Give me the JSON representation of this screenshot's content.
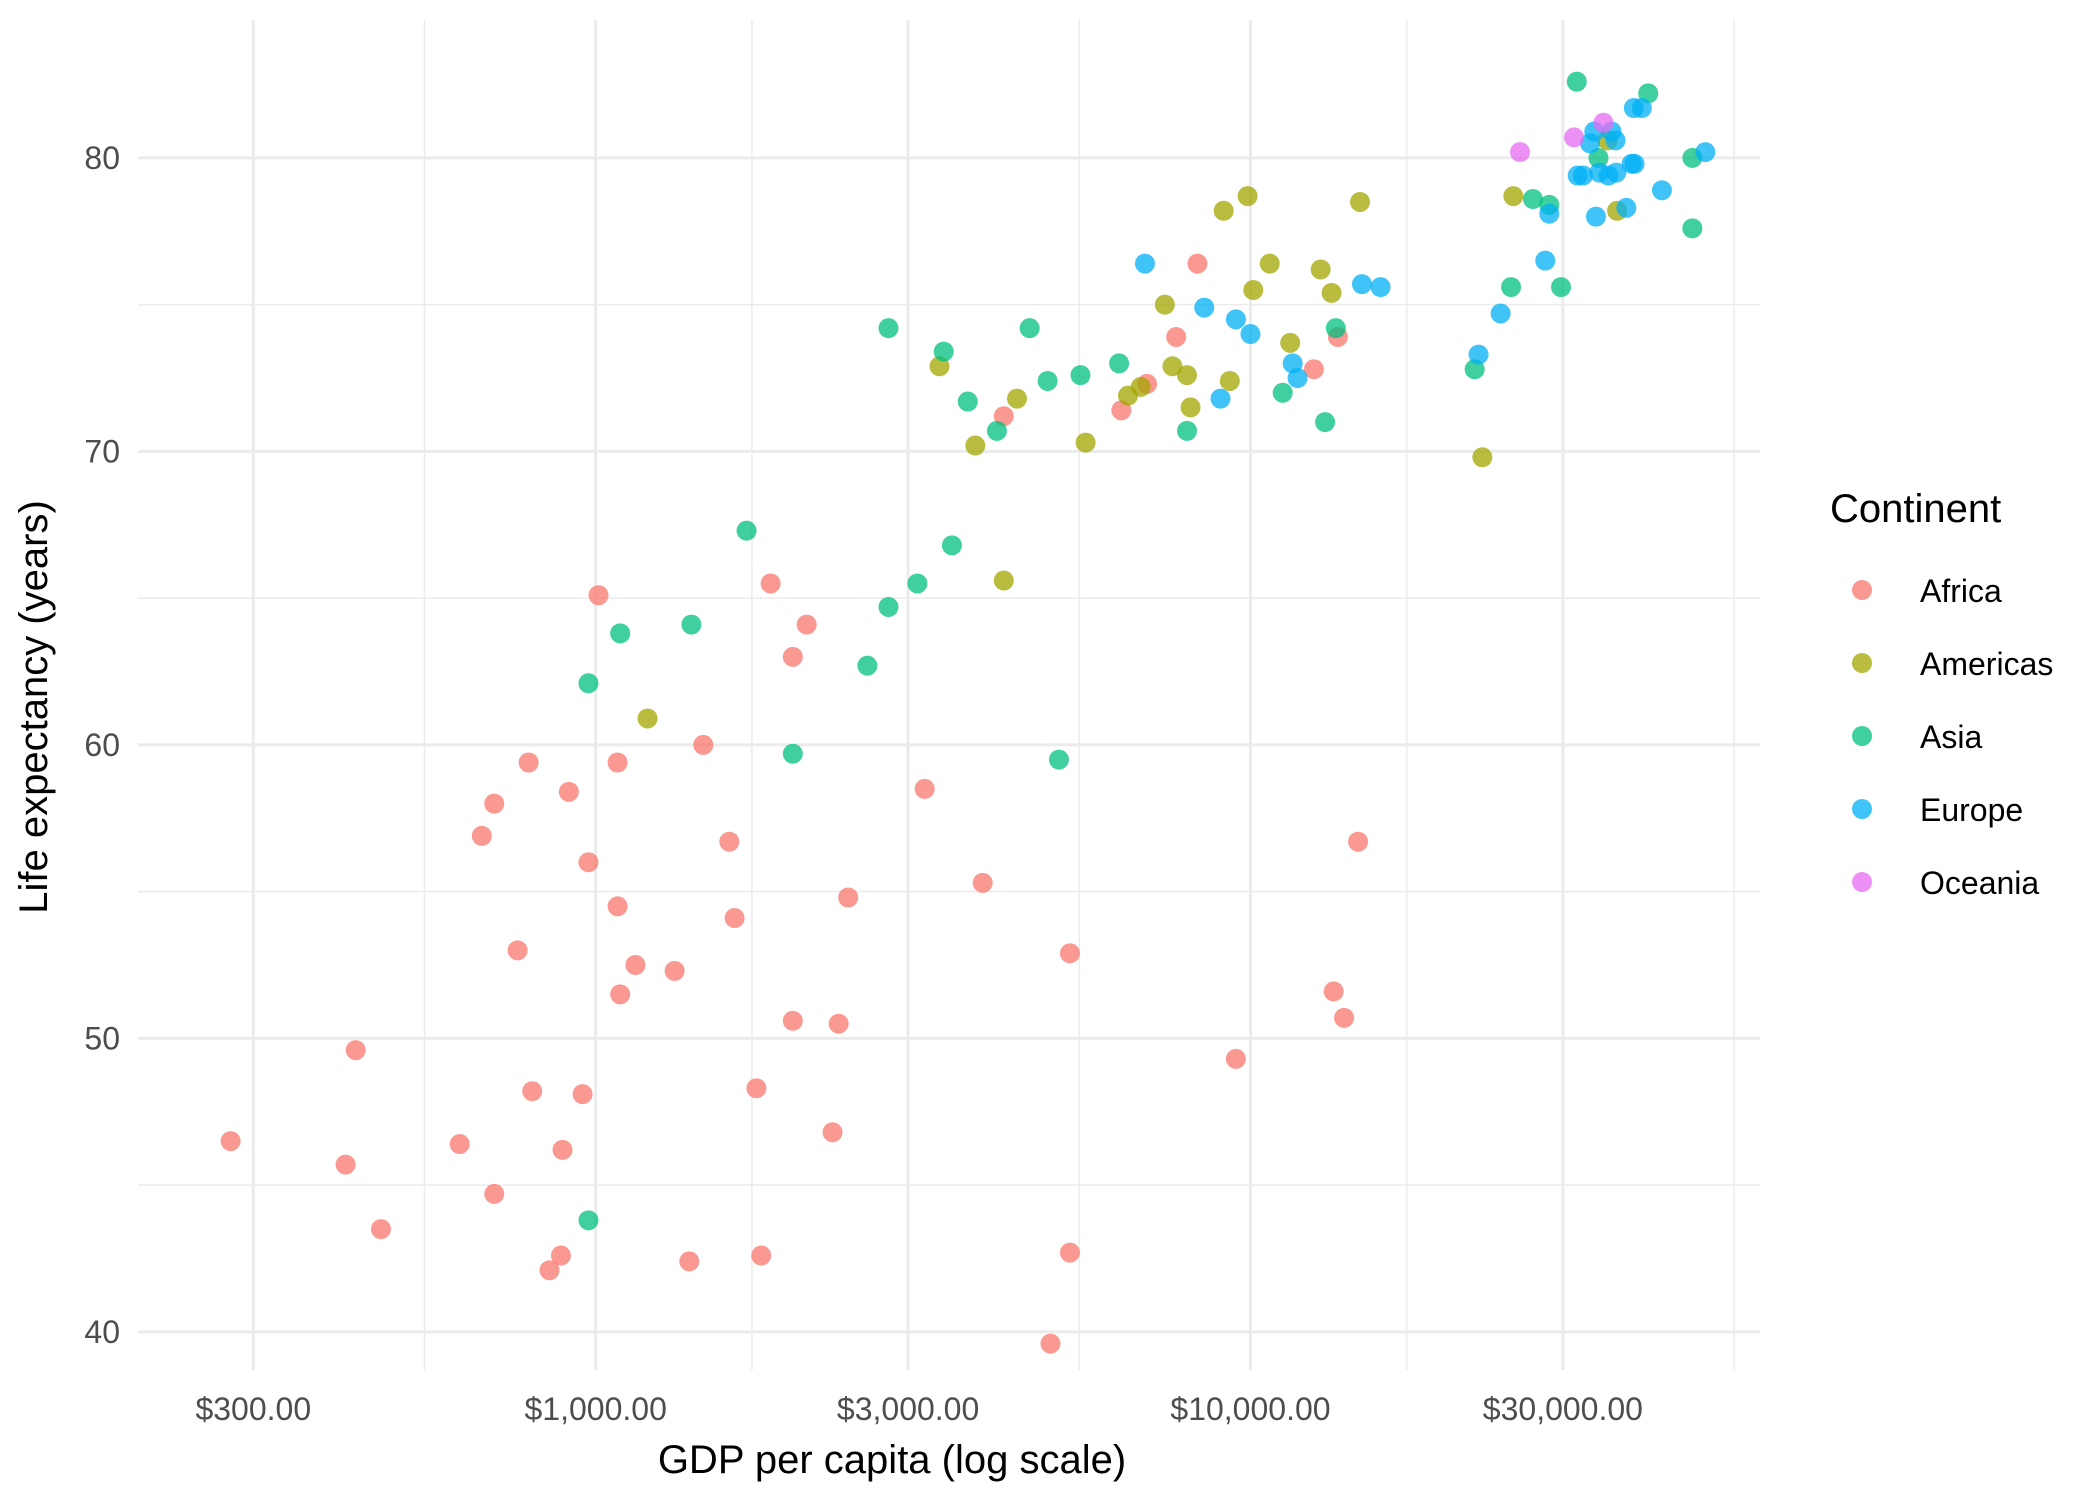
{
  "chart_data": {
    "type": "scatter",
    "xlabel": "GDP per capita (log scale)",
    "ylabel": "Life expectancy (years)",
    "x_scale": "log10",
    "xlim": [
      200,
      60000
    ],
    "ylim": [
      38.7,
      84.7
    ],
    "x_ticks": [
      {
        "value": 300,
        "label": "$300.00"
      },
      {
        "value": 1000,
        "label": "$1,000.00"
      },
      {
        "value": 3000,
        "label": "$3,000.00"
      },
      {
        "value": 10000,
        "label": "$10,000.00"
      },
      {
        "value": 30000,
        "label": "$30,000.00"
      }
    ],
    "y_ticks": [
      {
        "value": 40,
        "label": "40"
      },
      {
        "value": 50,
        "label": "50"
      },
      {
        "value": 60,
        "label": "60"
      },
      {
        "value": 70,
        "label": "70"
      },
      {
        "value": 80,
        "label": "80"
      }
    ],
    "grid": true,
    "legend": {
      "title": "Continent",
      "position": "right"
    },
    "series": [
      {
        "name": "Africa",
        "color": "#F8766D",
        "points": [
          [
            277,
            46.5
          ],
          [
            415,
            45.7
          ],
          [
            430,
            49.6
          ],
          [
            470,
            43.5
          ],
          [
            620,
            46.4
          ],
          [
            670,
            56.9
          ],
          [
            700,
            58.0
          ],
          [
            760,
            53.0
          ],
          [
            790,
            59.4
          ],
          [
            800,
            48.2
          ],
          [
            700,
            44.7
          ],
          [
            850,
            42.1
          ],
          [
            885,
            42.6
          ],
          [
            890,
            46.2
          ],
          [
            910,
            58.4
          ],
          [
            955,
            48.1
          ],
          [
            975,
            56.0
          ],
          [
            1010,
            65.1
          ],
          [
            1080,
            59.4
          ],
          [
            1080,
            54.5
          ],
          [
            1090,
            51.5
          ],
          [
            1150,
            52.5
          ],
          [
            1320,
            52.3
          ],
          [
            1390,
            42.4
          ],
          [
            1460,
            60.0
          ],
          [
            1600,
            56.7
          ],
          [
            1630,
            54.1
          ],
          [
            1760,
            48.3
          ],
          [
            1790,
            42.6
          ],
          [
            1850,
            65.5
          ],
          [
            2000,
            63.0
          ],
          [
            2000,
            50.6
          ],
          [
            2100,
            64.1
          ],
          [
            2300,
            46.8
          ],
          [
            2350,
            50.5
          ],
          [
            2430,
            54.8
          ],
          [
            3180,
            58.5
          ],
          [
            3900,
            55.3
          ],
          [
            4200,
            71.2
          ],
          [
            4950,
            39.6
          ],
          [
            5300,
            52.9
          ],
          [
            5300,
            42.7
          ],
          [
            6350,
            71.4
          ],
          [
            6950,
            72.3
          ],
          [
            7700,
            73.9
          ],
          [
            8300,
            76.4
          ],
          [
            9500,
            49.3
          ],
          [
            12500,
            72.8
          ],
          [
            13600,
            73.9
          ],
          [
            13400,
            51.6
          ],
          [
            13900,
            50.7
          ],
          [
            14600,
            56.7
          ]
        ]
      },
      {
        "name": "Americas",
        "color": "#A3A500",
        "points": [
          [
            1200,
            60.9
          ],
          [
            3350,
            72.9
          ],
          [
            3800,
            70.2
          ],
          [
            4200,
            65.6
          ],
          [
            4400,
            71.8
          ],
          [
            5600,
            70.3
          ],
          [
            6500,
            71.9
          ],
          [
            6800,
            72.2
          ],
          [
            7400,
            75.0
          ],
          [
            7600,
            72.9
          ],
          [
            8000,
            72.6
          ],
          [
            8100,
            71.5
          ],
          [
            9100,
            78.2
          ],
          [
            9300,
            72.4
          ],
          [
            9900,
            78.7
          ],
          [
            10100,
            75.5
          ],
          [
            10700,
            76.4
          ],
          [
            11500,
            73.7
          ],
          [
            12800,
            76.2
          ],
          [
            13300,
            75.4
          ],
          [
            14700,
            78.5
          ],
          [
            22600,
            69.8
          ],
          [
            25200,
            78.7
          ],
          [
            35100,
            80.6
          ],
          [
            36300,
            78.2
          ]
        ]
      },
      {
        "name": "Asia",
        "color": "#00BF7D",
        "points": [
          [
            975,
            43.8
          ],
          [
            975,
            62.1
          ],
          [
            1090,
            63.8
          ],
          [
            1400,
            64.1
          ],
          [
            1700,
            67.3
          ],
          [
            2000,
            59.7
          ],
          [
            2600,
            62.7
          ],
          [
            2800,
            74.2
          ],
          [
            3100,
            65.5
          ],
          [
            2800,
            64.7
          ],
          [
            3400,
            73.4
          ],
          [
            3500,
            66.8
          ],
          [
            3700,
            71.7
          ],
          [
            4100,
            70.7
          ],
          [
            4600,
            74.2
          ],
          [
            4900,
            72.4
          ],
          [
            5100,
            59.5
          ],
          [
            5500,
            72.6
          ],
          [
            6300,
            73.0
          ],
          [
            8000,
            70.7
          ],
          [
            11200,
            72.0
          ],
          [
            13000,
            71.0
          ],
          [
            13500,
            74.2
          ],
          [
            22000,
            72.8
          ],
          [
            25000,
            75.6
          ],
          [
            27000,
            78.6
          ],
          [
            28600,
            78.4
          ],
          [
            29800,
            75.6
          ],
          [
            31500,
            82.6
          ],
          [
            34000,
            80.0
          ],
          [
            40500,
            82.2
          ],
          [
            47300,
            77.6
          ],
          [
            47300,
            80.0
          ]
        ]
      },
      {
        "name": "Europe",
        "color": "#00B0F6",
        "points": [
          [
            6900,
            76.4
          ],
          [
            8500,
            74.9
          ],
          [
            9000,
            71.8
          ],
          [
            9500,
            74.5
          ],
          [
            10000,
            74.0
          ],
          [
            11600,
            73.0
          ],
          [
            11800,
            72.5
          ],
          [
            14800,
            75.7
          ],
          [
            15800,
            75.6
          ],
          [
            22300,
            73.3
          ],
          [
            24100,
            74.7
          ],
          [
            28200,
            76.5
          ],
          [
            28600,
            78.1
          ],
          [
            33700,
            78.0
          ],
          [
            31600,
            79.4
          ],
          [
            32200,
            79.4
          ],
          [
            33000,
            80.5
          ],
          [
            33500,
            80.9
          ],
          [
            34100,
            79.5
          ],
          [
            35200,
            79.4
          ],
          [
            35600,
            80.9
          ],
          [
            36100,
            80.6
          ],
          [
            36200,
            79.5
          ],
          [
            37500,
            78.3
          ],
          [
            38200,
            79.8
          ],
          [
            38600,
            79.8
          ],
          [
            38500,
            81.7
          ],
          [
            39600,
            81.7
          ],
          [
            42500,
            78.9
          ],
          [
            49500,
            80.2
          ]
        ]
      },
      {
        "name": "Oceania",
        "color": "#E76BF3",
        "points": [
          [
            25800,
            80.2
          ],
          [
            31200,
            80.7
          ],
          [
            34600,
            81.2
          ]
        ]
      }
    ]
  }
}
